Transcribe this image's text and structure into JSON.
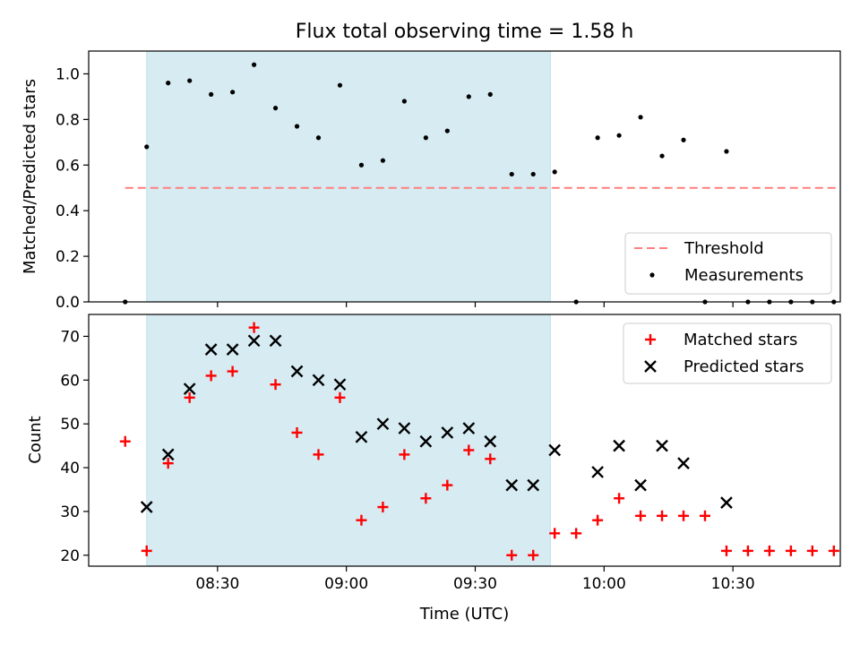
{
  "chart_data": {
    "type": "scatter",
    "title": "Flux total observing time = 1.58 h",
    "xlabel": "Time (UTC)",
    "x_tick_labels": [
      "08:30",
      "09:00",
      "09:30",
      "10:00",
      "10:30"
    ],
    "x_tick_minutes": [
      510,
      540,
      570,
      600,
      630
    ],
    "xlim_minutes": [
      480,
      655
    ],
    "shaded_span_minutes": [
      493.5,
      587.5
    ],
    "shade_color": "#add8e6",
    "panels": [
      {
        "ylabel": "Matched/Predicted stars",
        "ylim": [
          0,
          1.1
        ],
        "y_ticks": [
          "0.0",
          "0.2",
          "0.4",
          "0.6",
          "0.8",
          "1.0"
        ],
        "threshold": {
          "name": "Threshold",
          "value": 0.5,
          "x_range_minutes": [
            488.5,
            654
          ],
          "color": "#ff7f7f"
        },
        "series": [
          {
            "name": "Measurements",
            "marker": "dot",
            "color": "#000000",
            "x_minutes": [
              488.5,
              493.5,
              498.5,
              503.5,
              508.5,
              513.5,
              518.5,
              523.5,
              528.5,
              533.5,
              538.5,
              543.5,
              548.5,
              553.5,
              558.5,
              563.5,
              568.5,
              573.5,
              578.5,
              583.5,
              588.5,
              593.5,
              598.5,
              603.5,
              608.5,
              613.5,
              618.5,
              623.5,
              628.5,
              633.5,
              638.5,
              643.5,
              648.5,
              653.5
            ],
            "values": [
              0,
              0.68,
              0.96,
              0.97,
              0.91,
              0.92,
              1.04,
              0.85,
              0.77,
              0.72,
              0.95,
              0.6,
              0.62,
              0.88,
              0.72,
              0.75,
              0.9,
              0.91,
              0.56,
              0.56,
              0.57,
              0,
              0.72,
              0.73,
              0.81,
              0.64,
              0.71,
              0,
              0.66,
              0,
              0,
              0,
              0,
              0
            ]
          }
        ]
      },
      {
        "ylabel": "Count",
        "ylim": [
          17.5,
          75
        ],
        "y_ticks": [
          "20",
          "30",
          "40",
          "50",
          "60",
          "70"
        ],
        "series": [
          {
            "name": "Matched stars",
            "marker": "plus",
            "color": "#ff0000",
            "x_minutes": [
              488.5,
              493.5,
              498.5,
              503.5,
              508.5,
              513.5,
              518.5,
              523.5,
              528.5,
              533.5,
              538.5,
              543.5,
              548.5,
              553.5,
              558.5,
              563.5,
              568.5,
              573.5,
              578.5,
              583.5,
              588.5,
              593.5,
              598.5,
              603.5,
              608.5,
              613.5,
              618.5,
              623.5,
              628.5,
              633.5,
              638.5,
              643.5,
              648.5,
              653.5
            ],
            "values": [
              46,
              21,
              41,
              56,
              61,
              62,
              72,
              59,
              48,
              43,
              56,
              28,
              31,
              43,
              33,
              36,
              44,
              42,
              20,
              20,
              25,
              25,
              28,
              33,
              29,
              29,
              29,
              29,
              21,
              21,
              21,
              21,
              21,
              21
            ]
          },
          {
            "name": "Predicted stars",
            "marker": "x",
            "color": "#000000",
            "x_minutes": [
              493.5,
              498.5,
              503.5,
              508.5,
              513.5,
              518.5,
              523.5,
              528.5,
              533.5,
              538.5,
              543.5,
              548.5,
              553.5,
              558.5,
              563.5,
              568.5,
              573.5,
              578.5,
              583.5,
              588.5,
              598.5,
              603.5,
              608.5,
              613.5,
              618.5,
              628.5
            ],
            "values": [
              31,
              43,
              58,
              67,
              67,
              69,
              69,
              62,
              60,
              59,
              47,
              50,
              49,
              46,
              48,
              49,
              46,
              36,
              36,
              44,
              39,
              45,
              36,
              45,
              41,
              32
            ]
          }
        ]
      }
    ]
  }
}
